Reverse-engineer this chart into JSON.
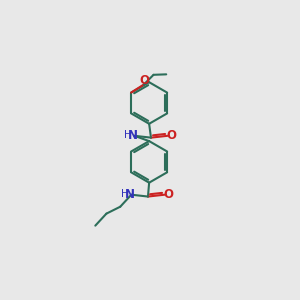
{
  "bg_color": "#e8e8e8",
  "bond_color": "#2d6e5a",
  "N_color": "#3333bb",
  "O_color": "#cc2222",
  "line_width": 1.5,
  "fig_size": [
    3.0,
    3.0
  ],
  "dpi": 100,
  "xlim": [
    0,
    10
  ],
  "ylim": [
    0,
    10
  ]
}
